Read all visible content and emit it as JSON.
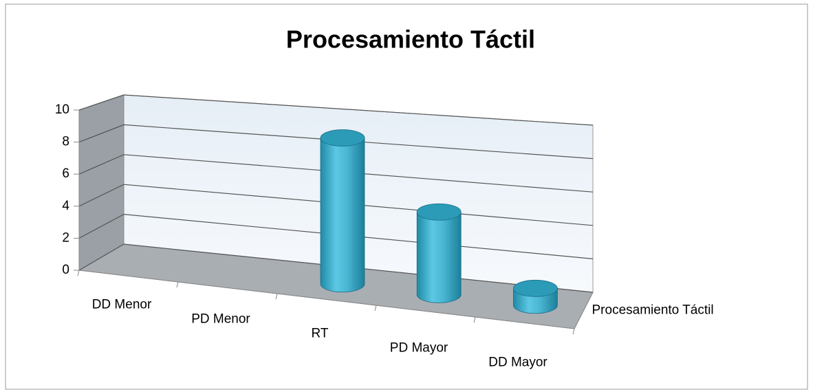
{
  "chart_data": {
    "type": "bar3d",
    "title": "Procesamiento Táctil",
    "categories": [
      "DD Menor",
      "PD Menor",
      "RT",
      "PD Mayor",
      "DD Mayor"
    ],
    "series": [
      {
        "name": "Procesamiento Táctil",
        "color": "#4bacc6",
        "values": [
          0,
          0,
          9,
          5,
          1
        ]
      }
    ],
    "ylim": [
      0,
      10
    ],
    "yticks": [
      0,
      2,
      4,
      6,
      8,
      10
    ],
    "grid": true
  }
}
